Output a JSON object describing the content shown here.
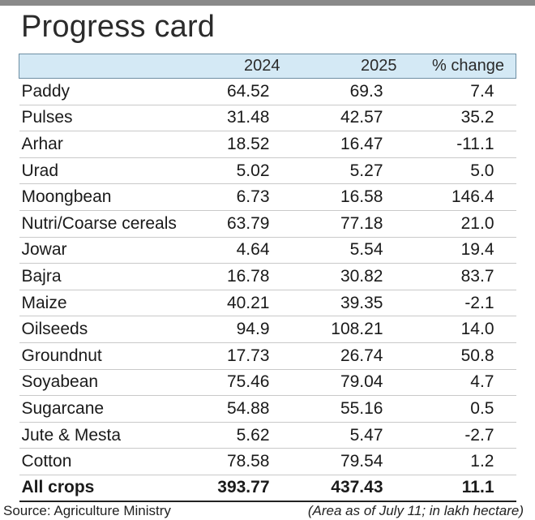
{
  "title": "Progress card",
  "chart_data": {
    "type": "table",
    "title": "Progress card",
    "columns": [
      "",
      "2024",
      "2025",
      "% change"
    ],
    "rows": [
      {
        "crop": "Paddy",
        "y2024": "64.52",
        "y2025": "69.3",
        "change": "7.4"
      },
      {
        "crop": "Pulses",
        "y2024": "31.48",
        "y2025": "42.57",
        "change": "35.2"
      },
      {
        "crop": "Arhar",
        "y2024": "18.52",
        "y2025": "16.47",
        "change": "-11.1"
      },
      {
        "crop": "Urad",
        "y2024": "5.02",
        "y2025": "5.27",
        "change": "5.0"
      },
      {
        "crop": "Moongbean",
        "y2024": "6.73",
        "y2025": "16.58",
        "change": "146.4"
      },
      {
        "crop": "Nutri/Coarse cereals",
        "y2024": "63.79",
        "y2025": "77.18",
        "change": "21.0"
      },
      {
        "crop": "Jowar",
        "y2024": "4.64",
        "y2025": "5.54",
        "change": "19.4"
      },
      {
        "crop": "Bajra",
        "y2024": "16.78",
        "y2025": "30.82",
        "change": "83.7"
      },
      {
        "crop": "Maize",
        "y2024": "40.21",
        "y2025": "39.35",
        "change": "-2.1"
      },
      {
        "crop": "Oilseeds",
        "y2024": "94.9",
        "y2025": "108.21",
        "change": "14.0"
      },
      {
        "crop": "Groundnut",
        "y2024": "17.73",
        "y2025": "26.74",
        "change": "50.8"
      },
      {
        "crop": "Soyabean",
        "y2024": "75.46",
        "y2025": "79.04",
        "change": "4.7"
      },
      {
        "crop": "Sugarcane",
        "y2024": "54.88",
        "y2025": "55.16",
        "change": "0.5"
      },
      {
        "crop": "Jute & Mesta",
        "y2024": "5.62",
        "y2025": "5.47",
        "change": "-2.7"
      },
      {
        "crop": "Cotton",
        "y2024": "78.58",
        "y2025": "79.54",
        "change": "1.2"
      }
    ],
    "total": {
      "crop": "All crops",
      "y2024": "393.77",
      "y2025": "437.43",
      "change": "11.1"
    }
  },
  "footer": {
    "source": "Source: Agriculture Ministry",
    "note": "(Area as of July 11;  in lakh hectare)"
  },
  "colors": {
    "header_background": "#d4e9f5",
    "top_bar": "#8a8a8a"
  }
}
